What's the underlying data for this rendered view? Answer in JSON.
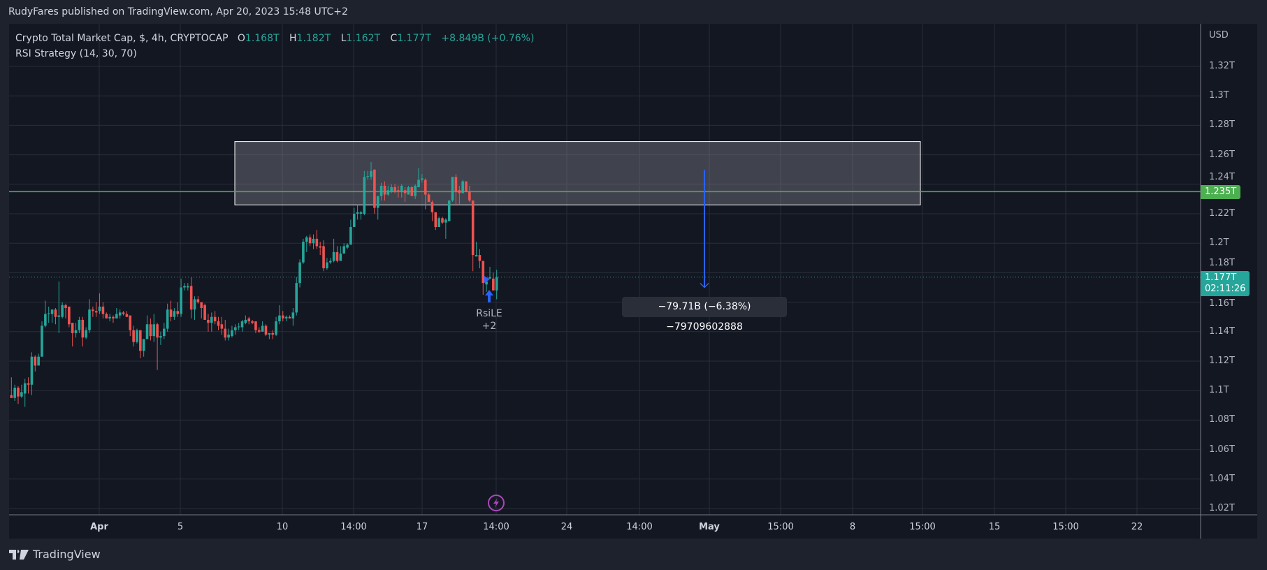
{
  "header": {
    "published": "RudyFares published on TradingView.com, Apr 20, 2023 15:48 UTC+2"
  },
  "legend": {
    "symbol": "Crypto Total Market Cap, $, 4h, CRYPTOCAP",
    "o_label": "O",
    "o": "1.168T",
    "h_label": "H",
    "h": "1.182T",
    "l_label": "L",
    "l": "1.162T",
    "c_label": "C",
    "c": "1.177T",
    "change": "+8.849B (+0.76%)",
    "indicator": "RSI Strategy (14, 30, 70)"
  },
  "price_axis": {
    "currency": "USD",
    "ticks": [
      "1.32T",
      "1.3T",
      "1.28T",
      "1.26T",
      "1.24T",
      "1.22T",
      "1.2T",
      "1.18T",
      "1.16T",
      "1.14T",
      "1.12T",
      "1.1T",
      "1.08T",
      "1.06T",
      "1.04T",
      "1.02T"
    ],
    "horizontal_line_label": "1.235T",
    "last_price_label": "1.177T",
    "countdown": "02:11:26"
  },
  "time_axis": {
    "ticks": [
      "Apr",
      "5",
      "10",
      "14:00",
      "17",
      "14:00",
      "24",
      "14:00",
      "May",
      "15:00",
      "8",
      "15:00",
      "15",
      "15:00",
      "22"
    ]
  },
  "measurement": {
    "label": "−79.71B (−6.38%) −79709602888"
  },
  "strategy_marker": {
    "name": "RsiLE",
    "count": "+2"
  },
  "footer": {
    "brand": "TradingView"
  },
  "colors": {
    "up": "#26a69a",
    "down": "#ef5350",
    "hline": "#4caf50",
    "arrow": "#2962ff",
    "grid": "#2a2e39",
    "background": "#131722"
  },
  "chart_data": {
    "type": "candlestick",
    "timeframe": "4h",
    "ylim": [
      1.01,
      1.33
    ],
    "horizontal_line": 1.235,
    "last_price": 1.177,
    "zone": {
      "top": 1.269,
      "bottom": 1.226
    },
    "measure_arrow": {
      "from": 1.2497,
      "to": 1.17
    },
    "ohlc": [
      [
        1.097,
        1.109,
        1.095,
        1.095
      ],
      [
        1.095,
        1.104,
        1.093,
        1.102
      ],
      [
        1.102,
        1.103,
        1.091,
        1.096
      ],
      [
        1.096,
        1.104,
        1.095,
        1.099
      ],
      [
        1.098,
        1.108,
        1.089,
        1.105
      ],
      [
        1.105,
        1.109,
        1.098,
        1.104
      ],
      [
        1.104,
        1.126,
        1.097,
        1.123
      ],
      [
        1.123,
        1.124,
        1.113,
        1.117
      ],
      [
        1.117,
        1.125,
        1.117,
        1.123
      ],
      [
        1.123,
        1.147,
        1.123,
        1.144
      ],
      [
        1.144,
        1.161,
        1.143,
        1.152
      ],
      [
        1.152,
        1.157,
        1.146,
        1.1525
      ],
      [
        1.152,
        1.155,
        1.146,
        1.155
      ],
      [
        1.155,
        1.156,
        1.145,
        1.15
      ],
      [
        1.15,
        1.174,
        1.139,
        1.151
      ],
      [
        1.15,
        1.16,
        1.149,
        1.158
      ],
      [
        1.158,
        1.159,
        1.149,
        1.156
      ],
      [
        1.157,
        1.157,
        1.143,
        1.145
      ],
      [
        1.146,
        1.146,
        1.13,
        1.139
      ],
      [
        1.139,
        1.146,
        1.136,
        1.141
      ],
      [
        1.141,
        1.15,
        1.139,
        1.148
      ],
      [
        1.148,
        1.15,
        1.13,
        1.136
      ],
      [
        1.136,
        1.143,
        1.135,
        1.141
      ],
      [
        1.141,
        1.162,
        1.139,
        1.155
      ],
      [
        1.155,
        1.157,
        1.15,
        1.154
      ],
      [
        1.154,
        1.16,
        1.15,
        1.153
      ],
      [
        1.154,
        1.166,
        1.152,
        1.157
      ],
      [
        1.157,
        1.16,
        1.149,
        1.152
      ],
      [
        1.152,
        1.153,
        1.149,
        1.149
      ],
      [
        1.149,
        1.152,
        1.147,
        1.15
      ],
      [
        1.15,
        1.151,
        1.146,
        1.149
      ],
      [
        1.149,
        1.156,
        1.149,
        1.152
      ],
      [
        1.151,
        1.155,
        1.149,
        1.153
      ],
      [
        1.153,
        1.154,
        1.151,
        1.152
      ],
      [
        1.152,
        1.154,
        1.15,
        1.15
      ],
      [
        1.151,
        1.151,
        1.137,
        1.141
      ],
      [
        1.141,
        1.144,
        1.13,
        1.133
      ],
      [
        1.133,
        1.142,
        1.132,
        1.141
      ],
      [
        1.141,
        1.141,
        1.122,
        1.127
      ],
      [
        1.127,
        1.135,
        1.123,
        1.135
      ],
      [
        1.135,
        1.151,
        1.135,
        1.145
      ],
      [
        1.145,
        1.149,
        1.134,
        1.137
      ],
      [
        1.137,
        1.152,
        1.133,
        1.145
      ],
      [
        1.145,
        1.146,
        1.114,
        1.136
      ],
      [
        1.136,
        1.14,
        1.131,
        1.137
      ],
      [
        1.137,
        1.146,
        1.135,
        1.142
      ],
      [
        1.142,
        1.159,
        1.14,
        1.155
      ],
      [
        1.155,
        1.161,
        1.147,
        1.15
      ],
      [
        1.15,
        1.156,
        1.148,
        1.154
      ],
      [
        1.154,
        1.16,
        1.15,
        1.152
      ],
      [
        1.152,
        1.176,
        1.15,
        1.17
      ],
      [
        1.17,
        1.173,
        1.168,
        1.171
      ],
      [
        1.17,
        1.173,
        1.168,
        1.171
      ],
      [
        1.171,
        1.177,
        1.149,
        1.155
      ],
      [
        1.155,
        1.164,
        1.148,
        1.162
      ],
      [
        1.162,
        1.164,
        1.159,
        1.16
      ],
      [
        1.16,
        1.16,
        1.149,
        1.156
      ],
      [
        1.158,
        1.159,
        1.148,
        1.148
      ],
      [
        1.148,
        1.152,
        1.14,
        1.146
      ],
      [
        1.146,
        1.153,
        1.14,
        1.15
      ],
      [
        1.15,
        1.154,
        1.145,
        1.147
      ],
      [
        1.147,
        1.15,
        1.141,
        1.144
      ],
      [
        1.145,
        1.15,
        1.138,
        1.142
      ],
      [
        1.142,
        1.148,
        1.134,
        1.136
      ],
      [
        1.136,
        1.142,
        1.134,
        1.138
      ],
      [
        1.137,
        1.144,
        1.136,
        1.141
      ],
      [
        1.141,
        1.145,
        1.138,
        1.143
      ],
      [
        1.143,
        1.146,
        1.141,
        1.1435
      ],
      [
        1.143,
        1.148,
        1.14,
        1.147
      ],
      [
        1.146,
        1.151,
        1.145,
        1.148
      ],
      [
        1.149,
        1.15,
        1.145,
        1.147
      ],
      [
        1.147,
        1.148,
        1.145,
        1.146
      ],
      [
        1.147,
        1.147,
        1.139,
        1.141
      ],
      [
        1.141,
        1.143,
        1.139,
        1.14
      ],
      [
        1.14,
        1.147,
        1.14,
        1.144
      ],
      [
        1.144,
        1.145,
        1.137,
        1.138
      ],
      [
        1.138,
        1.139,
        1.135,
        1.139
      ],
      [
        1.139,
        1.141,
        1.135,
        1.138
      ],
      [
        1.138,
        1.15,
        1.137,
        1.147
      ],
      [
        1.147,
        1.158,
        1.145,
        1.151
      ],
      [
        1.151,
        1.154,
        1.147,
        1.149
      ],
      [
        1.149,
        1.151,
        1.147,
        1.15
      ],
      [
        1.15,
        1.151,
        1.149,
        1.149
      ],
      [
        1.149,
        1.156,
        1.144,
        1.153
      ],
      [
        1.153,
        1.177,
        1.151,
        1.173
      ],
      [
        1.173,
        1.189,
        1.17,
        1.187
      ],
      [
        1.187,
        1.203,
        1.186,
        1.201
      ],
      [
        1.201,
        1.205,
        1.194,
        1.204
      ],
      [
        1.204,
        1.206,
        1.198,
        1.2
      ],
      [
        1.2,
        1.206,
        1.196,
        1.203
      ],
      [
        1.203,
        1.209,
        1.196,
        1.198
      ],
      [
        1.198,
        1.201,
        1.192,
        1.197
      ],
      [
        1.198,
        1.202,
        1.181,
        1.183
      ],
      [
        1.183,
        1.19,
        1.182,
        1.187
      ],
      [
        1.187,
        1.19,
        1.186,
        1.188
      ],
      [
        1.188,
        1.203,
        1.187,
        1.194
      ],
      [
        1.194,
        1.198,
        1.187,
        1.188
      ],
      [
        1.188,
        1.198,
        1.188,
        1.193
      ],
      [
        1.193,
        1.2,
        1.193,
        1.198
      ],
      [
        1.197,
        1.2,
        1.196,
        1.199
      ],
      [
        1.199,
        1.216,
        1.199,
        1.211
      ],
      [
        1.211,
        1.224,
        1.211,
        1.22
      ],
      [
        1.22,
        1.226,
        1.216,
        1.221
      ],
      [
        1.22,
        1.222,
        1.216,
        1.221
      ],
      [
        1.22,
        1.249,
        1.219,
        1.245
      ],
      [
        1.245,
        1.249,
        1.243,
        1.2455
      ],
      [
        1.245,
        1.255,
        1.243,
        1.249
      ],
      [
        1.25,
        1.25,
        1.22,
        1.224
      ],
      [
        1.224,
        1.232,
        1.216,
        1.232
      ],
      [
        1.232,
        1.241,
        1.229,
        1.239
      ],
      [
        1.239,
        1.242,
        1.229,
        1.233
      ],
      [
        1.233,
        1.239,
        1.232,
        1.236
      ],
      [
        1.235,
        1.24,
        1.234,
        1.238
      ],
      [
        1.238,
        1.24,
        1.234,
        1.235
      ],
      [
        1.236,
        1.239,
        1.231,
        1.2355
      ],
      [
        1.235,
        1.24,
        1.231,
        1.239
      ],
      [
        1.236,
        1.238,
        1.228,
        1.234
      ],
      [
        1.233,
        1.239,
        1.233,
        1.238
      ],
      [
        1.238,
        1.239,
        1.232,
        1.232
      ],
      [
        1.232,
        1.24,
        1.23,
        1.239
      ],
      [
        1.238,
        1.251,
        1.238,
        1.243
      ],
      [
        1.243,
        1.247,
        1.241,
        1.244
      ],
      [
        1.243,
        1.244,
        1.223,
        1.233
      ],
      [
        1.233,
        1.234,
        1.228,
        1.228
      ],
      [
        1.228,
        1.229,
        1.215,
        1.221
      ],
      [
        1.221,
        1.221,
        1.209,
        1.211
      ],
      [
        1.211,
        1.218,
        1.211,
        1.217
      ],
      [
        1.217,
        1.218,
        1.213,
        1.214
      ],
      [
        1.214,
        1.217,
        1.203,
        1.216
      ],
      [
        1.215,
        1.229,
        1.215,
        1.229
      ],
      [
        1.229,
        1.245,
        1.228,
        1.245
      ],
      [
        1.245,
        1.247,
        1.226,
        1.235
      ],
      [
        1.236,
        1.239,
        1.226,
        1.234
      ],
      [
        1.234,
        1.243,
        1.234,
        1.242
      ],
      [
        1.242,
        1.242,
        1.235,
        1.235
      ],
      [
        1.235,
        1.239,
        1.228,
        1.229
      ],
      [
        1.229,
        1.229,
        1.181,
        1.192
      ],
      [
        1.191,
        1.201,
        1.191,
        1.192
      ],
      [
        1.192,
        1.196,
        1.183,
        1.188
      ],
      [
        1.188,
        1.188,
        1.165,
        1.173
      ],
      [
        1.172,
        1.174,
        1.167,
        1.174
      ],
      [
        1.176,
        1.184,
        1.176,
        1.177
      ],
      [
        1.176,
        1.18,
        1.168,
        1.168
      ],
      [
        1.168,
        1.182,
        1.162,
        1.177
      ]
    ]
  }
}
